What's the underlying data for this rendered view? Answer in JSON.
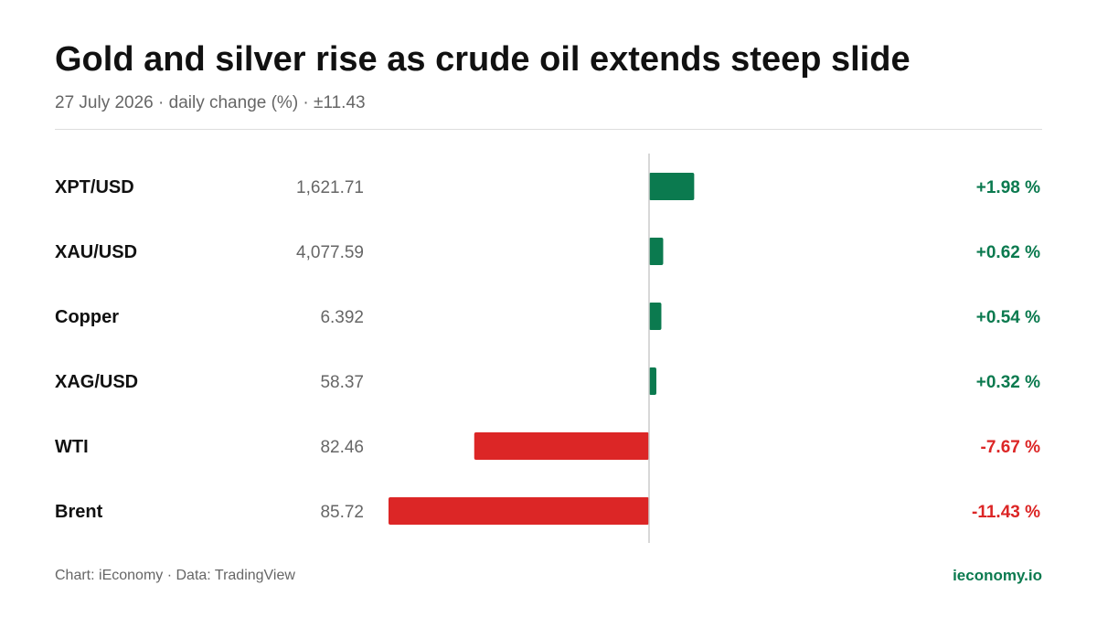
{
  "header": {
    "title": "Gold and silver rise as crude oil extends steep slide",
    "subtitle": "27 July 2026 · daily change (%) · ±11.43"
  },
  "footer": {
    "credit": "Chart: iEconomy · Data: TradingView",
    "brand": "ieconomy.io"
  },
  "colors": {
    "positive": "#0b7a4f",
    "negative": "#dc2626",
    "axis": "#cccccc",
    "label": "#111111",
    "price": "#666666"
  },
  "chart_data": {
    "type": "bar",
    "orientation": "horizontal",
    "categories": [
      "XPT/USD",
      "XAU/USD",
      "Copper",
      "XAG/USD",
      "WTI",
      "Brent"
    ],
    "prices": [
      "1,621.71",
      "4,077.59",
      "6.392",
      "58.37",
      "82.46",
      "85.72"
    ],
    "values": [
      1.98,
      0.62,
      0.54,
      0.32,
      -7.67,
      -11.43
    ],
    "value_labels": [
      "+1.98 %",
      "+0.62 %",
      "+0.54 %",
      "+0.32 %",
      "-7.67 %",
      "-11.43 %"
    ],
    "xlim": [
      -11.43,
      11.43
    ]
  }
}
